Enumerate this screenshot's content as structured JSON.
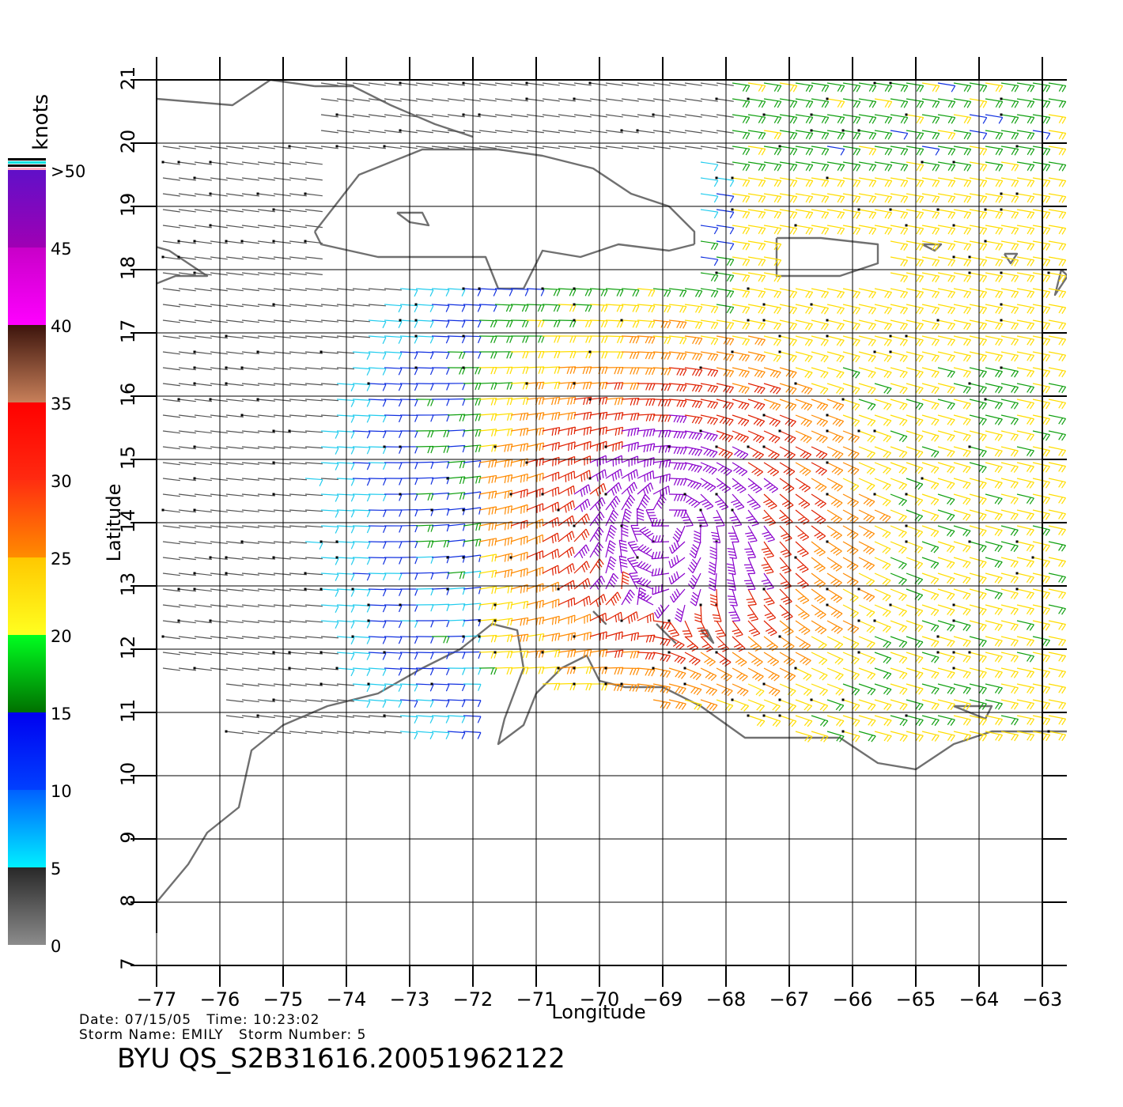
{
  "map": {
    "axes": {
      "xlabel": "Longitude",
      "ylabel": "Latitude",
      "lon_ticks": [
        -77,
        -76,
        -75,
        -74,
        -73,
        -72,
        -71,
        -70,
        -69,
        -68,
        -67,
        -66,
        -65,
        -64,
        -63
      ],
      "lat_ticks": [
        7,
        8,
        9,
        10,
        11,
        12,
        13,
        14,
        15,
        16,
        17,
        18,
        19,
        20,
        21
      ],
      "lon_range": [
        -77,
        -62.6
      ],
      "lat_range": [
        7,
        21
      ],
      "grid": true
    },
    "colorbar": {
      "title": "knots",
      "labels": [
        "0",
        "5",
        "10",
        "15",
        "20",
        "25",
        "30",
        "35",
        "40",
        "45",
        ">50"
      ],
      "segments": [
        {
          "from": 0,
          "to": 5,
          "colors": [
            "#8c8c8c",
            "#282828"
          ]
        },
        {
          "from": 5,
          "to": 10,
          "colors": [
            "#00f0ff",
            "#0060ff"
          ]
        },
        {
          "from": 10,
          "to": 15,
          "colors": [
            "#0040ff",
            "#0000f0"
          ]
        },
        {
          "from": 15,
          "to": 20,
          "colors": [
            "#007000",
            "#00ff20"
          ]
        },
        {
          "from": 20,
          "to": 25,
          "colors": [
            "#ffff20",
            "#ffc800"
          ]
        },
        {
          "from": 25,
          "to": 30,
          "colors": [
            "#ff8c00",
            "#ff2e10"
          ]
        },
        {
          "from": 30,
          "to": 35,
          "colors": [
            "#ff2a10",
            "#ff0000"
          ]
        },
        {
          "from": 35,
          "to": 40,
          "colors": [
            "#c8805a",
            "#3c140c"
          ]
        },
        {
          "from": 40,
          "to": 45,
          "colors": [
            "#ff00ff",
            "#c800c8"
          ]
        },
        {
          "from": 45,
          "to": 50,
          "colors": [
            "#a000b4",
            "#6010c8"
          ]
        }
      ],
      "cap_colors": [
        "#000000",
        "#00e0e0",
        "#000000",
        "#ffb0c0"
      ]
    },
    "wind_speed_bands": {
      "calm": "#555555",
      "cyan": "#22ccee",
      "blue": "#1030e0",
      "green": "#10a010",
      "yellow": "#ffdd00",
      "orange": "#ff8a00",
      "red": "#e02000",
      "purple": "#8a00cc"
    },
    "coast_color": "#707070",
    "storm": {
      "center_lon": -68.9,
      "center_lat": 14.1
    }
  },
  "footer": {
    "date_line": "Date: 07/15/05   Time: 10:23:02",
    "storm_line": "Storm Name: EMILY   Storm Number: 5",
    "file_id": "BYU QS_S2B31616.20051962122"
  }
}
